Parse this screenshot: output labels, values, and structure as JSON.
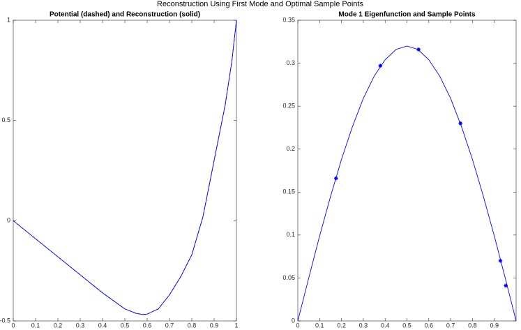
{
  "title": "Reconstruction Using First Mode and Optimal Sample Points",
  "chart_data": [
    {
      "type": "line",
      "title": "Potential (dashed) and Reconstruction (solid)",
      "x": [
        0,
        0.1,
        0.2,
        0.3,
        0.4,
        0.5,
        0.55,
        0.58,
        0.6,
        0.65,
        0.7,
        0.75,
        0.8,
        0.85,
        0.9,
        0.95,
        0.98,
        1
      ],
      "series": [
        {
          "color": "#0000ff",
          "dash": true,
          "values": [
            0,
            -0.09,
            -0.18,
            -0.27,
            -0.36,
            -0.44,
            -0.462,
            -0.468,
            -0.466,
            -0.44,
            -0.37,
            -0.28,
            -0.17,
            0.02,
            0.3,
            0.58,
            0.8,
            1
          ]
        },
        {
          "color": "#0000ff",
          "dash": false,
          "values": [
            0,
            -0.09,
            -0.18,
            -0.27,
            -0.36,
            -0.44,
            -0.462,
            -0.468,
            -0.466,
            -0.44,
            -0.37,
            -0.28,
            -0.17,
            0.02,
            0.3,
            0.58,
            0.8,
            1
          ]
        }
      ],
      "xlim": [
        0,
        1
      ],
      "ylim": [
        -0.5,
        1
      ],
      "xticks": [
        0,
        0.1,
        0.2,
        0.3,
        0.4,
        0.5,
        0.6,
        0.7,
        0.8,
        0.9,
        1
      ],
      "yticks": [
        -0.5,
        0,
        0.5,
        1
      ]
    },
    {
      "type": "line",
      "title": "Mode 1 Eigenfunction and Sample Points",
      "x": [
        0,
        0.05,
        0.1,
        0.15,
        0.2,
        0.25,
        0.3,
        0.35,
        0.4,
        0.45,
        0.5,
        0.55,
        0.6,
        0.65,
        0.7,
        0.75,
        0.8,
        0.85,
        0.9,
        0.95,
        1
      ],
      "series": [
        {
          "color": "#0000ff",
          "line": true,
          "values": [
            0,
            0.05,
            0.099,
            0.145,
            0.188,
            0.226,
            0.259,
            0.285,
            0.304,
            0.316,
            0.32,
            0.316,
            0.304,
            0.285,
            0.259,
            0.226,
            0.188,
            0.145,
            0.099,
            0.05,
            0
          ]
        },
        {
          "color": "#0000ff",
          "line": false,
          "marker": "*",
          "x": [
            0.175,
            0.378,
            0.553,
            0.745,
            0.928,
            0.953
          ],
          "values": [
            0.166,
            0.297,
            0.316,
            0.23,
            0.07,
            0.041
          ]
        }
      ],
      "xlim": [
        0,
        1
      ],
      "ylim": [
        0,
        0.35
      ],
      "xticks": [
        0,
        0.1,
        0.2,
        0.3,
        0.4,
        0.5,
        0.6,
        0.7,
        0.8,
        0.9
      ],
      "yticks": [
        0,
        0.05,
        0.1,
        0.15,
        0.2,
        0.25,
        0.3,
        0.35
      ]
    }
  ]
}
